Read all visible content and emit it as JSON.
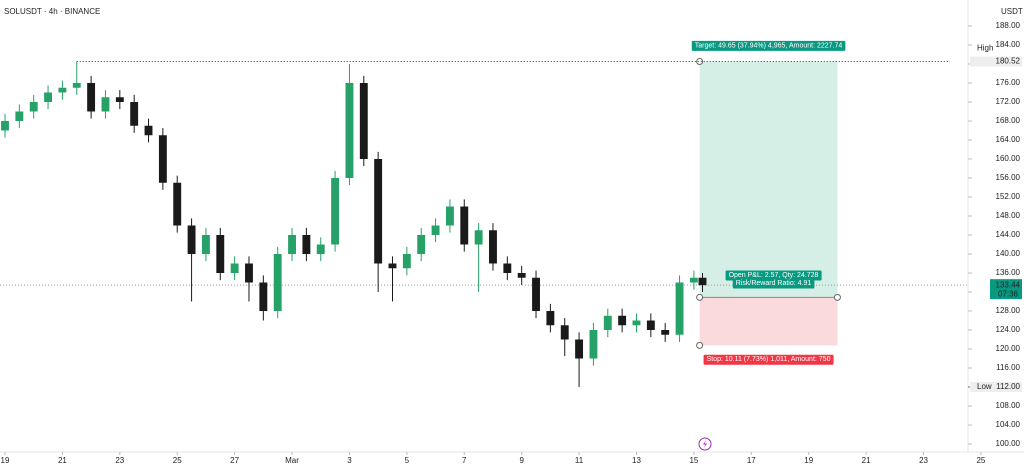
{
  "chart_data": {
    "type": "candlestick",
    "title": "SOLUSDT · 4h · BINANCE",
    "currency": "USDT",
    "up_color": "#26a269",
    "down_color": "#1a1a1a",
    "xlim": [
      -0.174,
      35.5
    ],
    "ylim": [
      98.32,
      193.47
    ],
    "xticks": [
      {
        "value": 0,
        "label": "19"
      },
      {
        "value": 2,
        "label": "21"
      },
      {
        "value": 4,
        "label": "23"
      },
      {
        "value": 6,
        "label": "25"
      },
      {
        "value": 8,
        "label": "27"
      },
      {
        "value": 10,
        "label": "Mar"
      },
      {
        "value": 12,
        "label": "3"
      },
      {
        "value": 14,
        "label": "5"
      },
      {
        "value": 16,
        "label": "7"
      },
      {
        "value": 18,
        "label": "9"
      },
      {
        "value": 20,
        "label": "11"
      },
      {
        "value": 22,
        "label": "13"
      },
      {
        "value": 24,
        "label": "15"
      },
      {
        "value": 26,
        "label": "17"
      },
      {
        "value": 28,
        "label": "19"
      },
      {
        "value": 30,
        "label": "21"
      },
      {
        "value": 32,
        "label": "23"
      },
      {
        "value": 34,
        "label": "25"
      }
    ],
    "yticks": [
      {
        "value": 100,
        "label": "100.00"
      },
      {
        "value": 104,
        "label": "104.00"
      },
      {
        "value": 108,
        "label": "108.00"
      },
      {
        "value": 112,
        "label": "112.00"
      },
      {
        "value": 116,
        "label": "116.00"
      },
      {
        "value": 120,
        "label": "120.00"
      },
      {
        "value": 124,
        "label": "124.00"
      },
      {
        "value": 128,
        "label": "128.00"
      },
      {
        "value": 132,
        "label": "132.00"
      },
      {
        "value": 136,
        "label": "136.00"
      },
      {
        "value": 140,
        "label": "140.00"
      },
      {
        "value": 144,
        "label": "144.00"
      },
      {
        "value": 148,
        "label": "148.00"
      },
      {
        "value": 152,
        "label": "152.00"
      },
      {
        "value": 156,
        "label": "156.00"
      },
      {
        "value": 160,
        "label": "160.00"
      },
      {
        "value": 164,
        "label": "164.00"
      },
      {
        "value": 168,
        "label": "168.00"
      },
      {
        "value": 172,
        "label": "172.00"
      },
      {
        "value": 176,
        "label": "176.00"
      },
      {
        "value": 180,
        "label": "180.00"
      },
      {
        "value": 184,
        "label": "184.00"
      },
      {
        "value": 188,
        "label": "188.00"
      }
    ],
    "x": [
      0,
      0.5,
      1,
      1.5,
      2,
      2.5,
      3,
      3.5,
      4,
      4.5,
      5,
      5.5,
      6,
      6.5,
      7,
      7.5,
      8,
      8.5,
      9,
      9.5,
      10,
      10.5,
      11,
      11.5,
      12,
      12.5,
      13,
      13.5,
      14,
      14.5,
      15,
      15.5,
      16,
      16.5,
      17,
      17.5,
      18,
      18.5,
      19,
      19.5,
      20,
      20.5,
      21,
      21.5,
      22,
      22.5,
      23,
      23.5,
      24,
      24.3
    ],
    "open": [
      166,
      168,
      170,
      172,
      174,
      175,
      176,
      170,
      173,
      172,
      167,
      165,
      155,
      146,
      140,
      144,
      136,
      138,
      134,
      128,
      140,
      144,
      140,
      142,
      156,
      176,
      160,
      138,
      137,
      140,
      144,
      146,
      150,
      142,
      145,
      138,
      136,
      135,
      128,
      125,
      122,
      118,
      124,
      127,
      125,
      126,
      124,
      123,
      134,
      135
    ],
    "high": [
      169.5,
      171.5,
      173.5,
      175.5,
      176.5,
      180.52,
      177.5,
      174.5,
      174.5,
      173.5,
      168.5,
      166.5,
      156.5,
      147.5,
      145.5,
      145.5,
      139.5,
      139.5,
      135.5,
      141.5,
      145.5,
      145.5,
      143.5,
      157.5,
      180,
      177.5,
      161.5,
      139.5,
      141.5,
      145.5,
      147.5,
      151.5,
      151.5,
      146.5,
      146.5,
      139.5,
      137.5,
      136.5,
      129.5,
      126.5,
      123.5,
      125.5,
      128.5,
      128.5,
      127.5,
      127.5,
      125.5,
      135.5,
      136.5,
      136
    ],
    "low": [
      164.5,
      166.5,
      168.5,
      170.5,
      172.5,
      173.5,
      168.5,
      168.5,
      170.5,
      165.5,
      163.5,
      153.5,
      144.5,
      130,
      138.5,
      134.5,
      134.5,
      130,
      126,
      126.5,
      138.5,
      138.5,
      138.5,
      140.5,
      154.5,
      158.5,
      132,
      130,
      135.5,
      138.5,
      142.5,
      144.5,
      140.5,
      132,
      136.5,
      134.5,
      133.5,
      126.5,
      123.5,
      118.5,
      112,
      116.5,
      122.5,
      123.5,
      123.5,
      122.5,
      121.5,
      121.5,
      132.5,
      132
    ],
    "close": [
      168,
      170,
      172,
      174,
      175,
      176,
      170,
      173,
      172,
      167,
      165,
      155,
      146,
      140,
      144,
      136,
      138,
      134,
      128,
      140,
      144,
      140,
      142,
      156,
      176,
      160,
      138,
      137,
      140,
      144,
      146,
      150,
      142,
      145,
      138,
      136,
      135,
      128,
      125,
      122,
      118,
      124,
      127,
      125,
      126,
      124,
      123,
      134,
      135,
      133.44
    ],
    "high_marker": {
      "label": "High",
      "value": 180.52,
      "value_label": "180.52"
    },
    "low_marker": {
      "label": "Low",
      "value": 112,
      "value_label": "112.00"
    },
    "last_price": {
      "value": 133.44,
      "value_label": "133.44",
      "countdown": "07:36"
    },
    "position": {
      "entry": 130.87,
      "target": 180.52,
      "stop": 120.76,
      "x_start": 24.2,
      "x_end": 29,
      "target_label": "Target: 49.65 (37.94%) 4,965, Amount: 2227.74",
      "pnl_label": "Open P&L: 2.57, Qty: 24.728",
      "ratio_label": "Risk/Reward Ratio: 4.91",
      "stop_label": "Stop: 10.11 (7.73%) 1,011, Amount: 750"
    }
  }
}
